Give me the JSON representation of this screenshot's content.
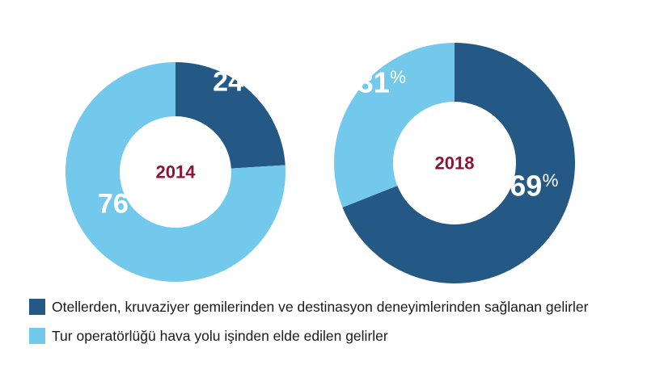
{
  "chart_data": {
    "type": "donut",
    "charts": [
      {
        "year": "2014",
        "slices": [
          {
            "series": "hotels",
            "value": 24,
            "label": "24",
            "unit": "%"
          },
          {
            "series": "tour",
            "value": 76,
            "label": "76",
            "unit": "%"
          }
        ]
      },
      {
        "year": "2018",
        "slices": [
          {
            "series": "hotels",
            "value": 69,
            "label": "69",
            "unit": "%"
          },
          {
            "series": "tour",
            "value": 31,
            "label": "31",
            "unit": "%"
          }
        ]
      }
    ],
    "legend": [
      {
        "series": "hotels",
        "label": "Otellerden, kruvaziyer gemilerinden ve  destinasyon deneyimlerinden sağlanan gelirler",
        "color": "#255985"
      },
      {
        "series": "tour",
        "label": "Tur operatörlüğü hava yolu işinden elde edilen gelirler",
        "color": "#72c9ec"
      }
    ],
    "year_color": "#8a1538"
  }
}
